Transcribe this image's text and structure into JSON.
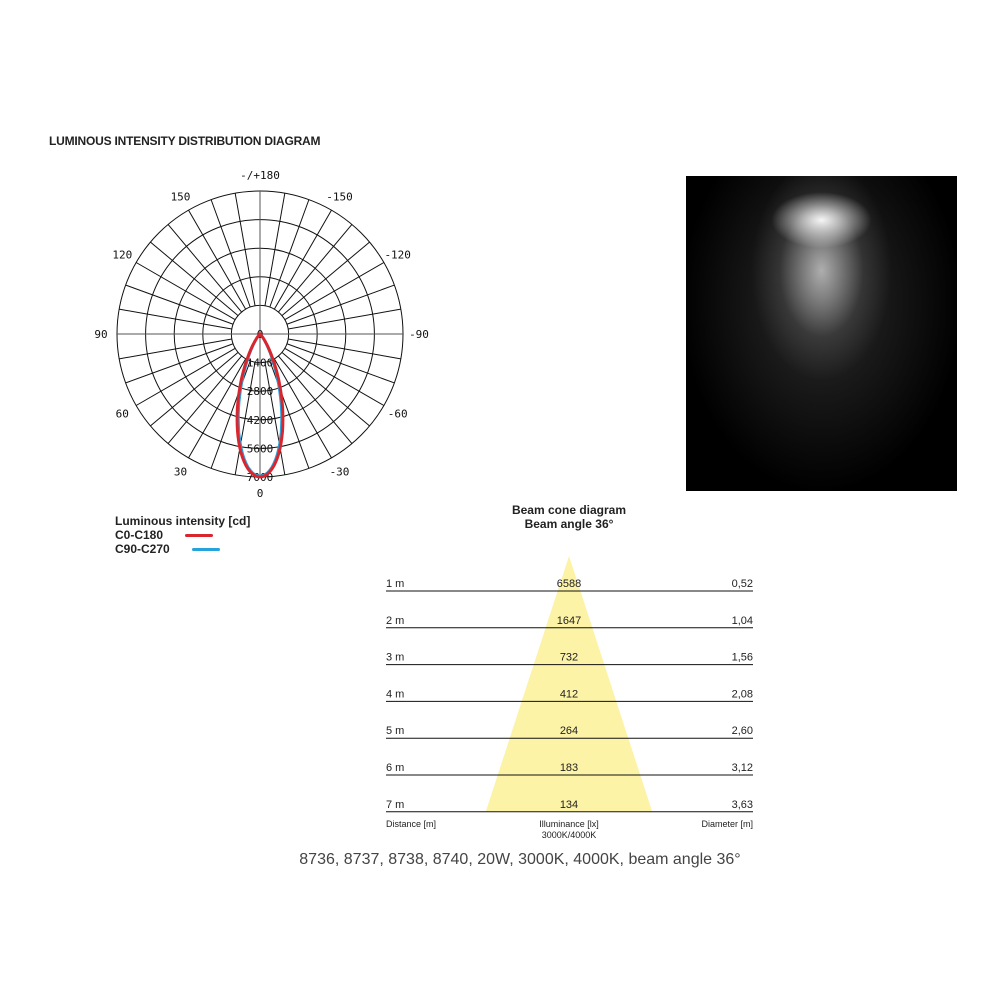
{
  "title": "LUMINOUS INTENSITY DISTRIBUTION DIAGRAM",
  "polar": {
    "angle_labels": [
      {
        "angle": 180,
        "text": "-/+180"
      },
      {
        "angle": -150,
        "text": "-150"
      },
      {
        "angle": 150,
        "text": "150"
      },
      {
        "angle": -120,
        "text": "-120"
      },
      {
        "angle": 120,
        "text": "120"
      },
      {
        "angle": -90,
        "text": "-90"
      },
      {
        "angle": 90,
        "text": "90"
      },
      {
        "angle": -60,
        "text": "-60"
      },
      {
        "angle": 60,
        "text": "60"
      },
      {
        "angle": -30,
        "text": "-30"
      },
      {
        "angle": 30,
        "text": "30"
      },
      {
        "angle": 0,
        "text": "0"
      }
    ],
    "radial_labels": [
      "0",
      "1400",
      "2800",
      "4200",
      "5600",
      "7000"
    ],
    "rmax": 7000,
    "series": [
      {
        "name": "C0-C180",
        "color": "#d9262e",
        "peak": 7000,
        "half_angle": 18
      },
      {
        "name": "C90-C270",
        "color": "#27a3dc",
        "peak": 6950,
        "half_angle": 17
      }
    ]
  },
  "legend": {
    "title": "Luminous intensity [cd]",
    "items": [
      {
        "label": "C0-C180",
        "color": "#d9262e"
      },
      {
        "label": "C90-C270",
        "color": "#27a3dc"
      }
    ]
  },
  "cone": {
    "title": "Beam cone diagram",
    "subtitle": "Beam angle 36°",
    "fill": "#fcf3a6",
    "rows": [
      {
        "distance": "1 m",
        "illuminance": "6588",
        "diameter": "0,52"
      },
      {
        "distance": "2 m",
        "illuminance": "1647",
        "diameter": "1,04"
      },
      {
        "distance": "3 m",
        "illuminance": "732",
        "diameter": "1,56"
      },
      {
        "distance": "4 m",
        "illuminance": "412",
        "diameter": "2,08"
      },
      {
        "distance": "5 m",
        "illuminance": "264",
        "diameter": "2,60"
      },
      {
        "distance": "6 m",
        "illuminance": "183",
        "diameter": "3,12"
      },
      {
        "distance": "7 m",
        "illuminance": "134",
        "diameter": "3,63"
      }
    ],
    "col_distance": "Distance [m]",
    "col_illuminance": "Illuminance [lx]",
    "col_illuminance_sub": "3000K/4000K",
    "col_diameter": "Diameter [m]"
  },
  "footer": "8736, 8737, 8738, 8740, 20W, 3000K, 4000K, beam angle 36°"
}
